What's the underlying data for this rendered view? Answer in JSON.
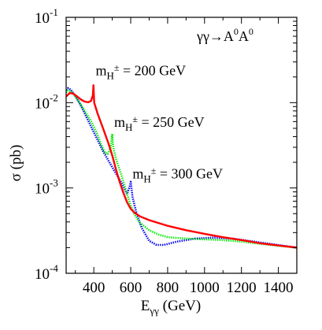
{
  "chart_data": {
    "type": "line",
    "title": "",
    "process_label": {
      "main": "γγ→A",
      "sup1": "0",
      "mid": "A",
      "sup2": "0"
    },
    "xlabel": {
      "main": "E",
      "sub": "γγ",
      "unit": " (GeV)"
    },
    "ylabel": "σ (pb)",
    "xlim": [
      250,
      1500
    ],
    "ylim": [
      0.0001,
      0.1
    ],
    "yscale": "log",
    "x_ticks": [
      400,
      600,
      800,
      1000,
      1200,
      1400
    ],
    "y_ticks": [
      {
        "value": 0.1,
        "base": "10",
        "exp": "-1"
      },
      {
        "value": 0.01,
        "base": "10",
        "exp": "-2"
      },
      {
        "value": 0.001,
        "base": "10",
        "exp": "-3"
      },
      {
        "value": 0.0001,
        "base": "10",
        "exp": "-4"
      }
    ],
    "annotations": [
      {
        "prefix": "m",
        "sub": "H",
        "sup": "±",
        "suffix": " = 200 GeV",
        "x": 410,
        "y": 0.021
      },
      {
        "prefix": "m",
        "sub": "H",
        "sup": "±",
        "suffix": " = 250 GeV",
        "x": 510,
        "y": 0.0052
      },
      {
        "prefix": "m",
        "sub": "H",
        "sup": "±",
        "suffix": " = 300 GeV",
        "x": 610,
        "y": 0.0013
      }
    ],
    "series": [
      {
        "color": "#ff0000",
        "style": "solid",
        "points": [
          [
            250,
            0.0118
          ],
          [
            270,
            0.013
          ],
          [
            290,
            0.0127
          ],
          [
            310,
            0.0118
          ],
          [
            330,
            0.0109
          ],
          [
            350,
            0.0103
          ],
          [
            370,
            0.0101
          ],
          [
            385,
            0.0105
          ],
          [
            395,
            0.0122
          ],
          [
            398,
            0.016
          ],
          [
            402,
            0.01
          ],
          [
            420,
            0.0075
          ],
          [
            450,
            0.005
          ],
          [
            480,
            0.0033
          ],
          [
            500,
            0.0024
          ],
          [
            520,
            0.00165
          ],
          [
            540,
            0.00118
          ],
          [
            560,
            0.00088
          ],
          [
            580,
            0.00068
          ],
          [
            600,
            0.00057
          ],
          [
            620,
            0.000515
          ],
          [
            650,
            0.000465
          ],
          [
            700,
            0.00042
          ],
          [
            800,
            0.00036
          ],
          [
            900,
            0.00032
          ],
          [
            1000,
            0.00029
          ],
          [
            1100,
            0.000265
          ],
          [
            1200,
            0.000245
          ],
          [
            1300,
            0.000225
          ],
          [
            1400,
            0.000212
          ],
          [
            1500,
            0.0002
          ]
        ]
      },
      {
        "color": "#00ee00",
        "style": "dotted",
        "points": [
          [
            250,
            0.0132
          ],
          [
            260,
            0.014
          ],
          [
            275,
            0.0136
          ],
          [
            300,
            0.0118
          ],
          [
            330,
            0.0095
          ],
          [
            360,
            0.0074
          ],
          [
            390,
            0.0058
          ],
          [
            420,
            0.0042
          ],
          [
            440,
            0.0032
          ],
          [
            460,
            0.0026
          ],
          [
            475,
            0.0025
          ],
          [
            490,
            0.0029
          ],
          [
            500,
            0.0043
          ],
          [
            505,
            0.003
          ],
          [
            520,
            0.0022
          ],
          [
            550,
            0.0014
          ],
          [
            580,
            0.00085
          ],
          [
            600,
            0.00062
          ],
          [
            620,
            0.00049
          ],
          [
            650,
            0.00039
          ],
          [
            700,
            0.00032
          ],
          [
            750,
            0.000285
          ],
          [
            800,
            0.000265
          ],
          [
            900,
            0.000255
          ],
          [
            1000,
            0.00025
          ],
          [
            1100,
            0.000245
          ],
          [
            1200,
            0.000235
          ],
          [
            1300,
            0.000222
          ],
          [
            1400,
            0.00021
          ],
          [
            1500,
            0.0002
          ]
        ]
      },
      {
        "color": "#0000ee",
        "style": "dotted",
        "points": [
          [
            250,
            0.014
          ],
          [
            260,
            0.0148
          ],
          [
            275,
            0.0142
          ],
          [
            300,
            0.012
          ],
          [
            330,
            0.0092
          ],
          [
            360,
            0.0068
          ],
          [
            400,
            0.0045
          ],
          [
            450,
            0.0027
          ],
          [
            500,
            0.00175
          ],
          [
            550,
            0.00115
          ],
          [
            580,
            0.00085
          ],
          [
            595,
            0.00105
          ],
          [
            600,
            0.00118
          ],
          [
            610,
            0.00078
          ],
          [
            630,
            0.00052
          ],
          [
            660,
            0.00034
          ],
          [
            700,
            0.00024
          ],
          [
            740,
            0.000215
          ],
          [
            780,
            0.000215
          ],
          [
            850,
            0.000235
          ],
          [
            950,
            0.000255
          ],
          [
            1050,
            0.000262
          ],
          [
            1150,
            0.000255
          ],
          [
            1250,
            0.000238
          ],
          [
            1350,
            0.000222
          ],
          [
            1450,
            0.000207
          ],
          [
            1500,
            0.0002
          ]
        ]
      }
    ]
  }
}
